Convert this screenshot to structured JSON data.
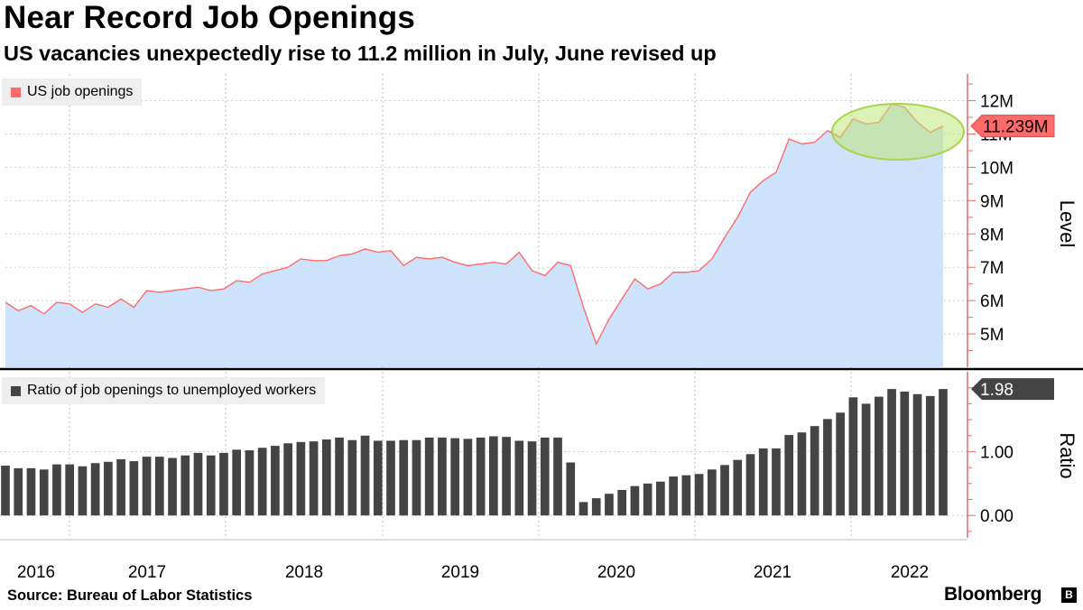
{
  "header": {
    "title": "Near Record Job Openings",
    "subtitle": "US vacancies unexpectedly rise to 11.2 million in July, June revised up"
  },
  "footer": {
    "source": "Source: Bureau of Labor Statistics",
    "brand": "Bloomberg",
    "brand_mark": "B"
  },
  "colors": {
    "line": "#ff6b6b",
    "area": "#cce3fb",
    "bar": "#444444",
    "highlight": "#bfe57a",
    "axis": "#e66b6b"
  },
  "chart_data": [
    {
      "type": "area",
      "axis_label": "Level",
      "legend": "US job openings",
      "ylim": [
        4000000,
        12800000
      ],
      "y_ticks": [
        5000000,
        6000000,
        7000000,
        8000000,
        9000000,
        10000000,
        11000000,
        12000000
      ],
      "y_tick_labels": [
        "5M",
        "6M",
        "7M",
        "8M",
        "9M",
        "10M",
        "11M",
        "12M"
      ],
      "last_value_label": "11.239M",
      "annotation": "highlighted recent peak (ellipse)",
      "grid": true,
      "x_start": "2016-01",
      "x_end": "2022-07",
      "values": [
        5.95,
        5.7,
        5.85,
        5.6,
        5.95,
        5.9,
        5.65,
        5.9,
        5.8,
        6.05,
        5.8,
        6.3,
        6.25,
        6.3,
        6.35,
        6.4,
        6.3,
        6.35,
        6.6,
        6.55,
        6.8,
        6.9,
        7.0,
        7.25,
        7.2,
        7.2,
        7.35,
        7.4,
        7.55,
        7.45,
        7.5,
        7.05,
        7.3,
        7.25,
        7.3,
        7.15,
        7.05,
        7.1,
        7.15,
        7.1,
        7.45,
        6.9,
        6.75,
        7.15,
        7.05,
        5.8,
        4.7,
        5.45,
        6.05,
        6.65,
        6.35,
        6.5,
        6.85,
        6.85,
        6.9,
        7.25,
        7.9,
        8.5,
        9.25,
        9.6,
        9.85,
        10.85,
        10.7,
        10.75,
        11.1,
        10.9,
        11.45,
        11.3,
        11.35,
        11.9,
        11.8,
        11.35,
        11.05,
        11.239
      ]
    },
    {
      "type": "bar",
      "axis_label": "Ratio",
      "legend": "Ratio of job openings to unemployed workers",
      "ylim": [
        -0.35,
        2.25
      ],
      "y_ticks": [
        0.0,
        1.0
      ],
      "y_tick_labels": [
        "0.00",
        "1.00"
      ],
      "last_value_label": "1.98",
      "grid": true,
      "values": [
        0.78,
        0.74,
        0.74,
        0.72,
        0.8,
        0.8,
        0.77,
        0.82,
        0.84,
        0.88,
        0.85,
        0.92,
        0.92,
        0.9,
        0.94,
        0.98,
        0.94,
        0.98,
        1.03,
        1.02,
        1.06,
        1.09,
        1.13,
        1.15,
        1.16,
        1.19,
        1.22,
        1.18,
        1.25,
        1.17,
        1.17,
        1.18,
        1.18,
        1.22,
        1.22,
        1.21,
        1.2,
        1.22,
        1.24,
        1.23,
        1.17,
        1.16,
        1.22,
        1.22,
        0.83,
        0.21,
        0.27,
        0.34,
        0.4,
        0.46,
        0.5,
        0.53,
        0.61,
        0.63,
        0.65,
        0.72,
        0.79,
        0.87,
        0.96,
        1.05,
        1.05,
        1.26,
        1.3,
        1.4,
        1.51,
        1.61,
        1.85,
        1.75,
        1.86,
        1.98,
        1.94,
        1.9,
        1.87,
        1.98
      ]
    }
  ],
  "x_axis": {
    "labels": [
      "2016",
      "2017",
      "2018",
      "2019",
      "2020",
      "2021",
      "2022"
    ]
  }
}
